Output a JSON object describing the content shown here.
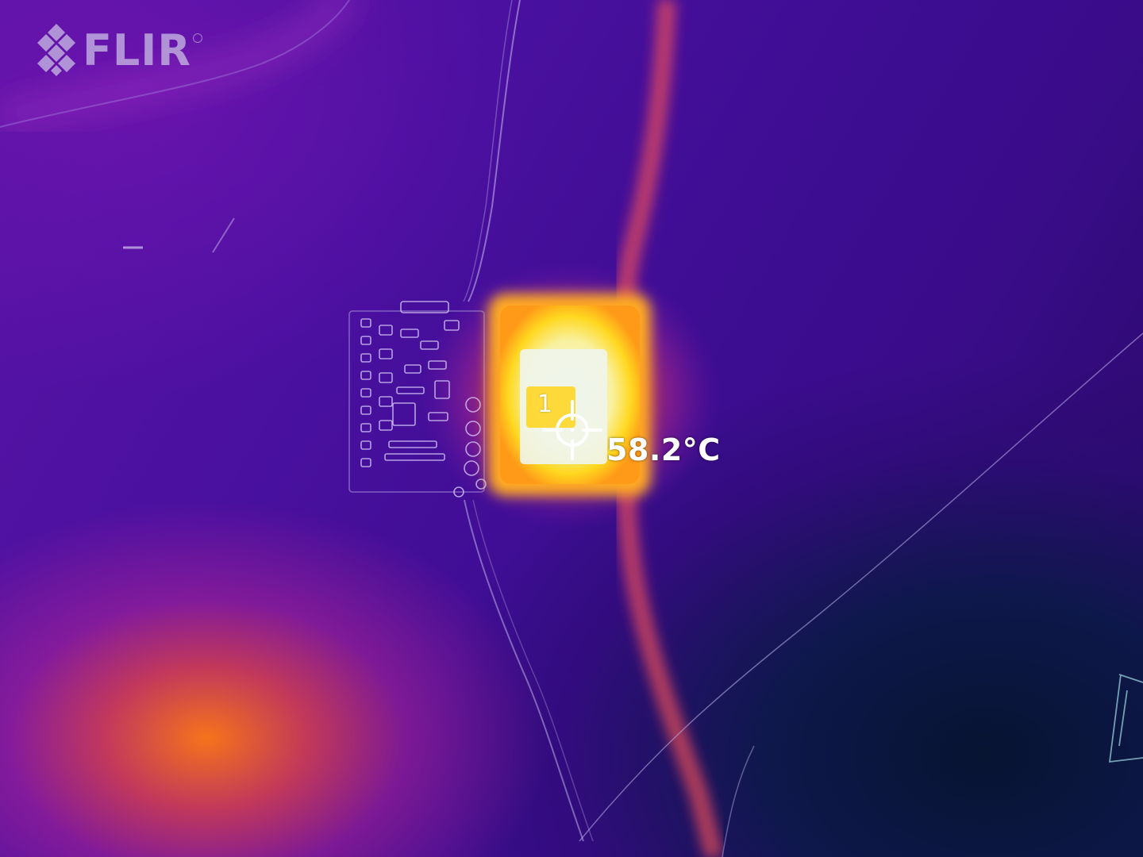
{
  "brand": {
    "logo_text": "FLIR",
    "logo_color": "#cdc3e6"
  },
  "measurement": {
    "spot_label": "1",
    "temperature": "58.2°C"
  },
  "palette": {
    "background_dark": "#24095e",
    "background_mid": "#4a10a0",
    "hot_core": "#f2f4e6",
    "hot_edge": "#ffe02a",
    "warm": "#ff8a1e",
    "cool_corner": "#061430"
  },
  "icons": {
    "logo_mark": "diamond-grid-icon",
    "spot_marker": "crosshair-icon"
  }
}
